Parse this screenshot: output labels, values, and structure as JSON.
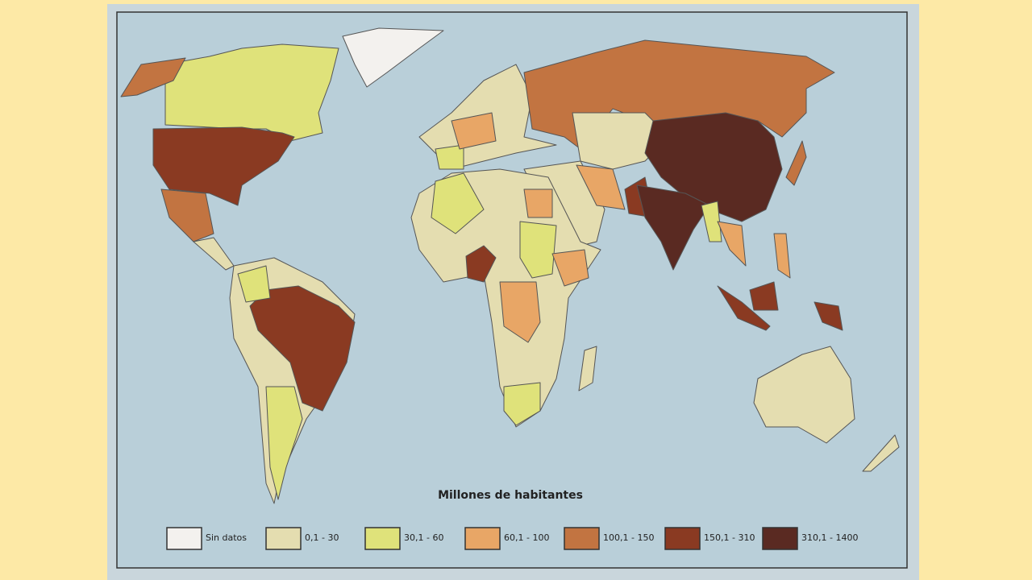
{
  "legend": {
    "title": "Millones de habitantes",
    "items": [
      {
        "label": "Sin datos",
        "color": "#f3f1ee"
      },
      {
        "label": "0,1 - 30",
        "color": "#e4ddb0"
      },
      {
        "label": "30,1 - 60",
        "color": "#dfe27a"
      },
      {
        "label": "60,1 - 100",
        "color": "#e8a666"
      },
      {
        "label": "100,1 - 150",
        "color": "#c27441"
      },
      {
        "label": "150,1 - 310",
        "color": "#8a3a22"
      },
      {
        "label": "310,1 - 1400",
        "color": "#5a2a22"
      }
    ]
  }
}
